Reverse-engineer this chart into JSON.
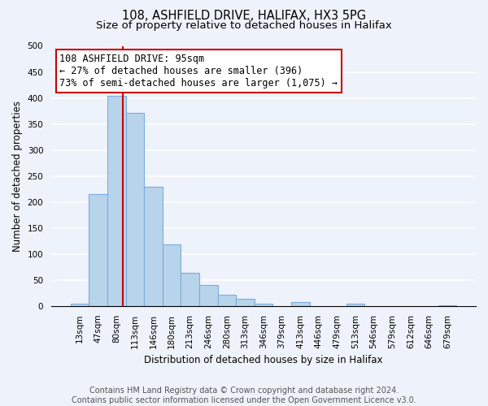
{
  "title": "108, ASHFIELD DRIVE, HALIFAX, HX3 5PG",
  "subtitle": "Size of property relative to detached houses in Halifax",
  "xlabel": "Distribution of detached houses by size in Halifax",
  "ylabel": "Number of detached properties",
  "bar_labels": [
    "13sqm",
    "47sqm",
    "80sqm",
    "113sqm",
    "146sqm",
    "180sqm",
    "213sqm",
    "246sqm",
    "280sqm",
    "313sqm",
    "346sqm",
    "379sqm",
    "413sqm",
    "446sqm",
    "479sqm",
    "513sqm",
    "546sqm",
    "579sqm",
    "612sqm",
    "646sqm",
    "679sqm"
  ],
  "bar_values": [
    5,
    215,
    404,
    371,
    229,
    119,
    64,
    40,
    21,
    14,
    5,
    0,
    8,
    0,
    0,
    5,
    0,
    0,
    0,
    0,
    2
  ],
  "bar_color": "#b8d4ea",
  "bar_edge_color": "#7aace0",
  "vline_x": 2.35,
  "vline_color": "#cc0000",
  "ylim": [
    0,
    500
  ],
  "yticks": [
    0,
    50,
    100,
    150,
    200,
    250,
    300,
    350,
    400,
    450,
    500
  ],
  "annotation_title": "108 ASHFIELD DRIVE: 95sqm",
  "annotation_line1": "← 27% of detached houses are smaller (396)",
  "annotation_line2": "73% of semi-detached houses are larger (1,075) →",
  "annotation_box_facecolor": "#ffffff",
  "annotation_box_edgecolor": "#cc0000",
  "footer_line1": "Contains HM Land Registry data © Crown copyright and database right 2024.",
  "footer_line2": "Contains public sector information licensed under the Open Government Licence v3.0.",
  "bg_color": "#eef2fa",
  "grid_color": "#ffffff",
  "title_fontsize": 10.5,
  "subtitle_fontsize": 9.5,
  "axis_label_fontsize": 8.5,
  "tick_fontsize": 7.5,
  "annotation_title_fontsize": 9,
  "annotation_body_fontsize": 8.5,
  "footer_fontsize": 7
}
